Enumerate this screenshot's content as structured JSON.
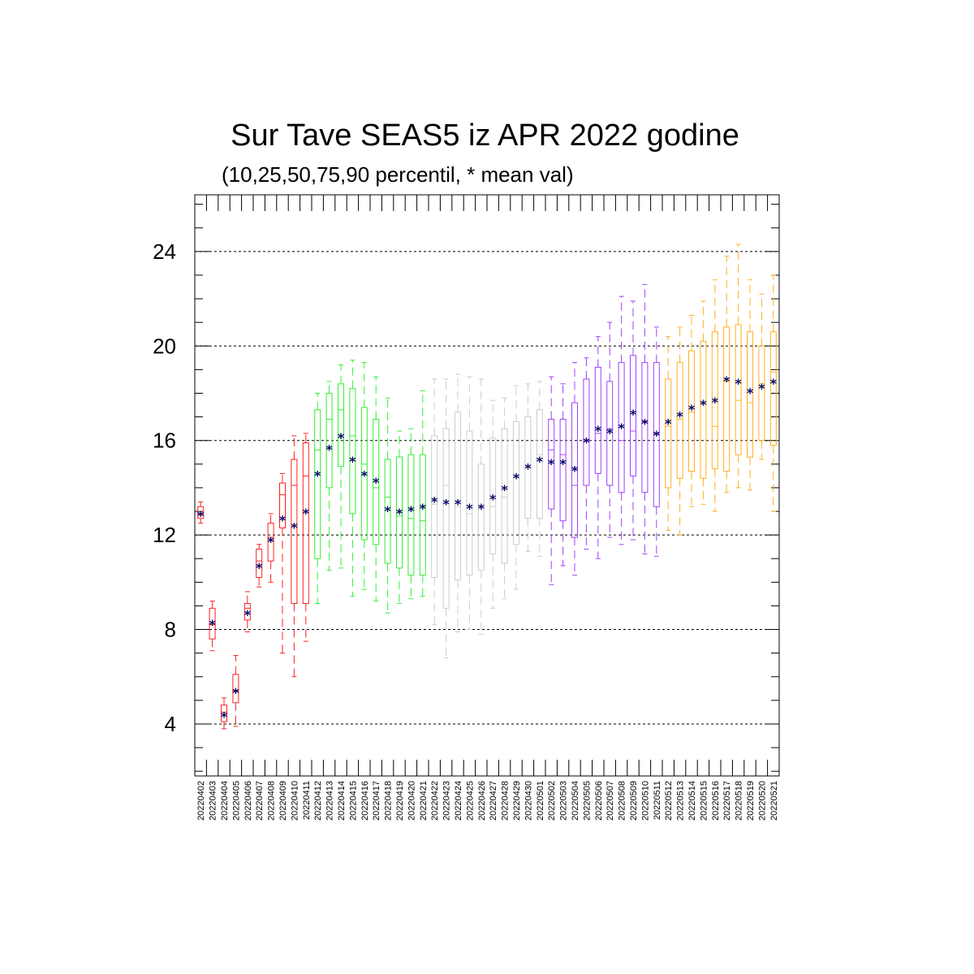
{
  "chart_data": {
    "type": "box",
    "title": "Sur Tave SEAS5 iz APR 2022 godine",
    "subtitle": "(10,25,50,75,90 percentil, * mean val)",
    "ylim": [
      1.8,
      26.4
    ],
    "yticks": [
      4,
      8,
      12,
      16,
      20,
      24
    ],
    "grid": "horizontal dashed at major ticks",
    "mean_marker": "*",
    "mean_color": "#000066",
    "categories": [
      "20220402",
      "20220403",
      "20220404",
      "20220405",
      "20220406",
      "20220407",
      "20220408",
      "20220409",
      "20220410",
      "20220411",
      "20220412",
      "20220413",
      "20220414",
      "20220415",
      "20220416",
      "20220417",
      "20220418",
      "20220419",
      "20220420",
      "20220421",
      "20220422",
      "20220423",
      "20220424",
      "20220425",
      "20220426",
      "20220427",
      "20220428",
      "20220429",
      "20220430",
      "20220501",
      "20220502",
      "20220503",
      "20220504",
      "20220505",
      "20220506",
      "20220507",
      "20220508",
      "20220509",
      "20220510",
      "20220511",
      "20220512",
      "20220513",
      "20220514",
      "20220515",
      "20220516",
      "20220517",
      "20220518",
      "20220519",
      "20220520",
      "20220521"
    ],
    "colors": {
      "red": "#ff2020",
      "green": "#33ee33",
      "gray": "#cccccc",
      "purple": "#a040ff",
      "orange": "#ffb020"
    },
    "boxes": [
      {
        "color": "red",
        "p10": 12.5,
        "p25": 12.7,
        "p50": 12.9,
        "p75": 13.2,
        "p90": 13.4,
        "mean": 12.9
      },
      {
        "color": "red",
        "p10": 7.1,
        "p25": 7.6,
        "p50": 8.2,
        "p75": 8.9,
        "p90": 9.2,
        "mean": 8.3
      },
      {
        "color": "red",
        "p10": 3.8,
        "p25": 4.1,
        "p50": 4.5,
        "p75": 4.8,
        "p90": 5.1,
        "mean": 4.4
      },
      {
        "color": "red",
        "p10": 3.9,
        "p25": 4.9,
        "p50": 5.4,
        "p75": 6.1,
        "p90": 6.9,
        "mean": 5.4
      },
      {
        "color": "red",
        "p10": 7.9,
        "p25": 8.4,
        "p50": 8.9,
        "p75": 9.1,
        "p90": 9.6,
        "mean": 8.7
      },
      {
        "color": "red",
        "p10": 9.8,
        "p25": 10.2,
        "p50": 10.9,
        "p75": 11.4,
        "p90": 11.6,
        "mean": 10.7
      },
      {
        "color": "red",
        "p10": 10.0,
        "p25": 10.9,
        "p50": 11.9,
        "p75": 12.5,
        "p90": 12.9,
        "mean": 11.8
      },
      {
        "color": "red",
        "p10": 7.0,
        "p25": 12.3,
        "p50": 13.7,
        "p75": 14.2,
        "p90": 14.6,
        "mean": 12.7
      },
      {
        "color": "red",
        "p10": 6.0,
        "p25": 9.1,
        "p50": 14.1,
        "p75": 15.2,
        "p90": 16.2,
        "mean": 12.4
      },
      {
        "color": "red",
        "p10": 7.5,
        "p25": 9.1,
        "p50": 14.5,
        "p75": 15.9,
        "p90": 16.3,
        "mean": 13.0
      },
      {
        "color": "green",
        "p10": 9.1,
        "p25": 11.0,
        "p50": 15.6,
        "p75": 17.3,
        "p90": 18.0,
        "mean": 14.6
      },
      {
        "color": "green",
        "p10": 10.5,
        "p25": 14.0,
        "p50": 16.9,
        "p75": 18.0,
        "p90": 18.5,
        "mean": 15.7
      },
      {
        "color": "green",
        "p10": 10.6,
        "p25": 14.9,
        "p50": 17.3,
        "p75": 18.4,
        "p90": 19.2,
        "mean": 16.2
      },
      {
        "color": "green",
        "p10": 9.4,
        "p25": 12.9,
        "p50": 16.2,
        "p75": 18.2,
        "p90": 19.4,
        "mean": 15.2
      },
      {
        "color": "green",
        "p10": 9.7,
        "p25": 11.8,
        "p50": 15.0,
        "p75": 17.4,
        "p90": 19.3,
        "mean": 14.6
      },
      {
        "color": "green",
        "p10": 9.2,
        "p25": 11.6,
        "p50": 14.0,
        "p75": 16.9,
        "p90": 18.7,
        "mean": 14.3
      },
      {
        "color": "green",
        "p10": 8.7,
        "p25": 10.8,
        "p50": 13.6,
        "p75": 15.2,
        "p90": 17.8,
        "mean": 13.1
      },
      {
        "color": "green",
        "p10": 9.1,
        "p25": 10.6,
        "p50": 12.8,
        "p75": 15.3,
        "p90": 16.4,
        "mean": 13.0
      },
      {
        "color": "green",
        "p10": 9.3,
        "p25": 10.3,
        "p50": 12.7,
        "p75": 15.4,
        "p90": 16.5,
        "mean": 13.1
      },
      {
        "color": "green",
        "p10": 9.4,
        "p25": 10.3,
        "p50": 12.6,
        "p75": 15.4,
        "p90": 18.1,
        "mean": 13.2
      },
      {
        "color": "gray",
        "p10": 8.2,
        "p25": 10.2,
        "p50": 13.3,
        "p75": 16.2,
        "p90": 18.6,
        "mean": 13.5
      },
      {
        "color": "gray",
        "p10": 6.8,
        "p25": 8.9,
        "p50": 14.1,
        "p75": 16.5,
        "p90": 18.6,
        "mean": 13.4
      },
      {
        "color": "gray",
        "p10": 7.9,
        "p25": 10.1,
        "p50": 13.2,
        "p75": 17.2,
        "p90": 18.8,
        "mean": 13.4
      },
      {
        "color": "gray",
        "p10": 8.0,
        "p25": 10.3,
        "p50": 12.9,
        "p75": 16.4,
        "p90": 18.7,
        "mean": 13.2
      },
      {
        "color": "gray",
        "p10": 7.8,
        "p25": 10.5,
        "p50": 13.2,
        "p75": 15.0,
        "p90": 18.6,
        "mean": 13.2
      },
      {
        "color": "gray",
        "p10": 8.9,
        "p25": 11.2,
        "p50": 13.2,
        "p75": 16.1,
        "p90": 17.7,
        "mean": 13.6
      },
      {
        "color": "gray",
        "p10": 9.3,
        "p25": 10.8,
        "p50": 13.6,
        "p75": 16.5,
        "p90": 17.8,
        "mean": 14.0
      },
      {
        "color": "gray",
        "p10": 9.7,
        "p25": 11.6,
        "p50": 14.5,
        "p75": 16.8,
        "p90": 18.3,
        "mean": 14.5
      },
      {
        "color": "gray",
        "p10": 11.3,
        "p25": 12.7,
        "p50": 14.9,
        "p75": 17.0,
        "p90": 18.4,
        "mean": 14.9
      },
      {
        "color": "gray",
        "p10": 11.1,
        "p25": 12.7,
        "p50": 15.4,
        "p75": 17.3,
        "p90": 18.5,
        "mean": 15.2
      },
      {
        "color": "purple",
        "p10": 9.9,
        "p25": 13.1,
        "p50": 15.6,
        "p75": 16.9,
        "p90": 18.7,
        "mean": 15.1
      },
      {
        "color": "purple",
        "p10": 10.7,
        "p25": 12.6,
        "p50": 15.4,
        "p75": 16.9,
        "p90": 18.4,
        "mean": 15.1
      },
      {
        "color": "purple",
        "p10": 10.3,
        "p25": 11.9,
        "p50": 14.1,
        "p75": 17.6,
        "p90": 19.3,
        "mean": 14.8
      },
      {
        "color": "purple",
        "p10": 11.4,
        "p25": 14.1,
        "p50": 16.0,
        "p75": 18.6,
        "p90": 19.5,
        "mean": 16.0
      },
      {
        "color": "purple",
        "p10": 11.0,
        "p25": 14.6,
        "p50": 16.3,
        "p75": 19.1,
        "p90": 20.4,
        "mean": 16.5
      },
      {
        "color": "purple",
        "p10": 11.9,
        "p25": 14.1,
        "p50": 16.5,
        "p75": 18.5,
        "p90": 21.0,
        "mean": 16.4
      },
      {
        "color": "purple",
        "p10": 11.6,
        "p25": 13.8,
        "p50": 16.0,
        "p75": 19.3,
        "p90": 22.1,
        "mean": 16.6
      },
      {
        "color": "purple",
        "p10": 11.8,
        "p25": 14.5,
        "p50": 16.4,
        "p75": 19.6,
        "p90": 21.9,
        "mean": 17.2
      },
      {
        "color": "purple",
        "p10": 11.2,
        "p25": 13.8,
        "p50": 16.8,
        "p75": 19.3,
        "p90": 22.6,
        "mean": 16.8
      },
      {
        "color": "purple",
        "p10": 11.1,
        "p25": 13.2,
        "p50": 16.3,
        "p75": 19.3,
        "p90": 20.8,
        "mean": 16.3
      },
      {
        "color": "orange",
        "p10": 12.2,
        "p25": 14.0,
        "p50": 16.6,
        "p75": 18.6,
        "p90": 20.4,
        "mean": 16.8
      },
      {
        "color": "orange",
        "p10": 12.0,
        "p25": 14.4,
        "p50": 16.9,
        "p75": 19.3,
        "p90": 20.8,
        "mean": 17.1
      },
      {
        "color": "orange",
        "p10": 13.2,
        "p25": 14.7,
        "p50": 17.2,
        "p75": 19.8,
        "p90": 21.3,
        "mean": 17.4
      },
      {
        "color": "orange",
        "p10": 13.3,
        "p25": 14.4,
        "p50": 17.6,
        "p75": 20.2,
        "p90": 21.9,
        "mean": 17.6
      },
      {
        "color": "orange",
        "p10": 13.0,
        "p25": 14.8,
        "p50": 16.6,
        "p75": 20.6,
        "p90": 22.8,
        "mean": 17.7
      },
      {
        "color": "orange",
        "p10": 13.8,
        "p25": 14.7,
        "p50": 18.5,
        "p75": 20.8,
        "p90": 23.8,
        "mean": 18.6
      },
      {
        "color": "orange",
        "p10": 14.0,
        "p25": 15.4,
        "p50": 17.7,
        "p75": 20.9,
        "p90": 24.3,
        "mean": 18.5
      },
      {
        "color": "orange",
        "p10": 13.9,
        "p25": 15.3,
        "p50": 17.6,
        "p75": 20.6,
        "p90": 22.8,
        "mean": 18.1
      },
      {
        "color": "orange",
        "p10": 15.2,
        "p25": 16.0,
        "p50": 18.4,
        "p75": 20.0,
        "p90": 22.2,
        "mean": 18.3
      },
      {
        "color": "orange",
        "p10": 13.0,
        "p25": 15.8,
        "p50": 18.9,
        "p75": 20.6,
        "p90": 23.0,
        "mean": 18.5
      }
    ]
  }
}
